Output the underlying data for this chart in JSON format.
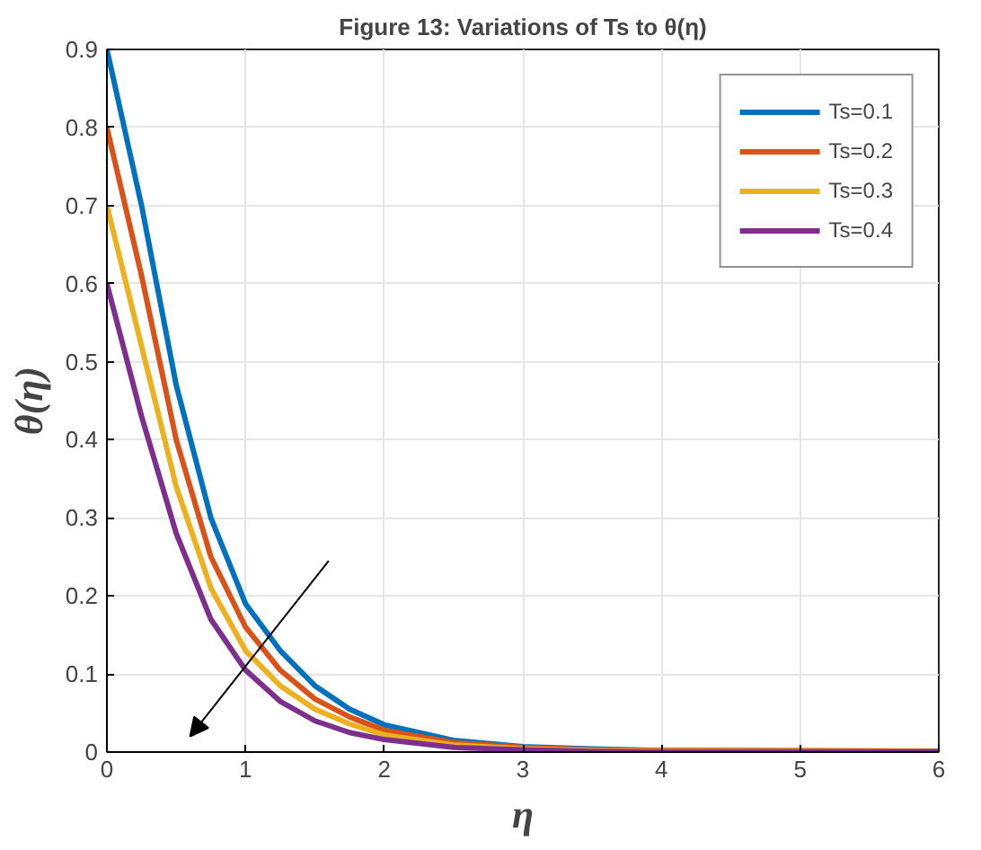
{
  "chart_data": {
    "type": "line",
    "title": "Figure 13: Variations of Ts to θ(η)",
    "xlabel": "η",
    "ylabel": "θ(η)",
    "x": [
      0,
      0.25,
      0.5,
      0.75,
      1,
      1.25,
      1.5,
      1.75,
      2,
      2.5,
      3,
      3.5,
      4,
      6
    ],
    "series": [
      {
        "name": "Ts=0.1",
        "color": "#0072bd",
        "values": [
          0.9,
          0.7,
          0.47,
          0.3,
          0.19,
          0.13,
          0.085,
          0.055,
          0.035,
          0.015,
          0.007,
          0.004,
          0.002,
          0.001
        ]
      },
      {
        "name": "Ts=0.2",
        "color": "#d95319",
        "values": [
          0.8,
          0.61,
          0.4,
          0.25,
          0.16,
          0.105,
          0.068,
          0.045,
          0.028,
          0.012,
          0.006,
          0.003,
          0.002,
          0.001
        ]
      },
      {
        "name": "Ts=0.3",
        "color": "#edb120",
        "values": [
          0.7,
          0.52,
          0.34,
          0.21,
          0.13,
          0.085,
          0.055,
          0.036,
          0.022,
          0.009,
          0.004,
          0.002,
          0.001,
          0
        ]
      },
      {
        "name": "Ts=0.4",
        "color": "#7e2f8e",
        "values": [
          0.6,
          0.43,
          0.28,
          0.17,
          0.105,
          0.065,
          0.04,
          0.025,
          0.016,
          0.006,
          0.003,
          0.001,
          0,
          0
        ]
      }
    ],
    "xlim": [
      0,
      6
    ],
    "ylim": [
      0,
      0.9
    ],
    "xticks": [
      0,
      1,
      2,
      3,
      4,
      5,
      6
    ],
    "yticks": [
      0,
      0.1,
      0.2,
      0.3,
      0.4,
      0.5,
      0.6,
      0.7,
      0.8,
      0.9
    ],
    "grid": true,
    "legend": "top right",
    "line_style": "solid",
    "marker": "none"
  }
}
